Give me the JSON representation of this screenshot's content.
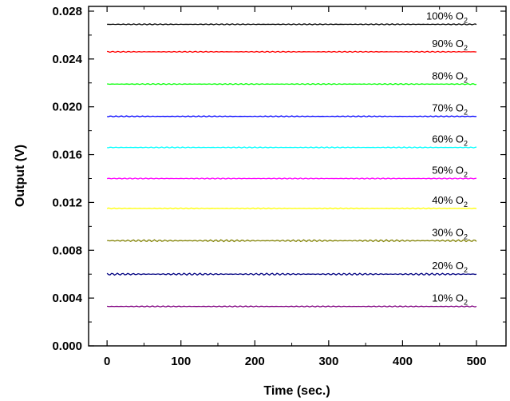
{
  "chart_data": {
    "type": "line",
    "xlabel": "Time (sec.)",
    "ylabel": "Output (V)",
    "xlim": [
      -25,
      540
    ],
    "ylim": [
      0.0,
      0.0284
    ],
    "x_ticks": [
      0,
      100,
      200,
      300,
      400,
      500
    ],
    "x_tick_labels": [
      "0",
      "100",
      "200",
      "300",
      "400",
      "500"
    ],
    "y_ticks": [
      0.0,
      0.004,
      0.008,
      0.012,
      0.016,
      0.02,
      0.024,
      0.028
    ],
    "y_tick_labels": [
      "0.000",
      "0.004",
      "0.008",
      "0.012",
      "0.016",
      "0.020",
      "0.024",
      "0.028"
    ],
    "x_range": [
      0,
      500
    ],
    "legend_placement": "inline-right",
    "grid": false,
    "series": [
      {
        "name": "100% O2",
        "label_main": "100% O",
        "label_sub": "2",
        "y": 0.0269,
        "noise": 4e-05,
        "color": "#000000"
      },
      {
        "name": "90% O2",
        "label_main": "90% O",
        "label_sub": "2",
        "y": 0.0246,
        "noise": 4e-05,
        "color": "#ff0000"
      },
      {
        "name": "80% O2",
        "label_main": "80% O",
        "label_sub": "2",
        "y": 0.0219,
        "noise": 4e-05,
        "color": "#00ff00"
      },
      {
        "name": "70% O2",
        "label_main": "70% O",
        "label_sub": "2",
        "y": 0.0192,
        "noise": 4e-05,
        "color": "#0000ff"
      },
      {
        "name": "60% O2",
        "label_main": "60% O",
        "label_sub": "2",
        "y": 0.0166,
        "noise": 4e-05,
        "color": "#00ffff"
      },
      {
        "name": "50% O2",
        "label_main": "50% O",
        "label_sub": "2",
        "y": 0.014,
        "noise": 4e-05,
        "color": "#ff00ff"
      },
      {
        "name": "40% O2",
        "label_main": "40% O",
        "label_sub": "2",
        "y": 0.0115,
        "noise": 4e-05,
        "color": "#ffff00"
      },
      {
        "name": "30% O2",
        "label_main": "30% O",
        "label_sub": "2",
        "y": 0.0088,
        "noise": 8e-05,
        "color": "#808000"
      },
      {
        "name": "20% O2",
        "label_main": "20% O",
        "label_sub": "2",
        "y": 0.006,
        "noise": 8e-05,
        "color": "#000080"
      },
      {
        "name": "10% O2",
        "label_main": "10% O",
        "label_sub": "2",
        "y": 0.0033,
        "noise": 4e-05,
        "color": "#800080"
      }
    ]
  }
}
